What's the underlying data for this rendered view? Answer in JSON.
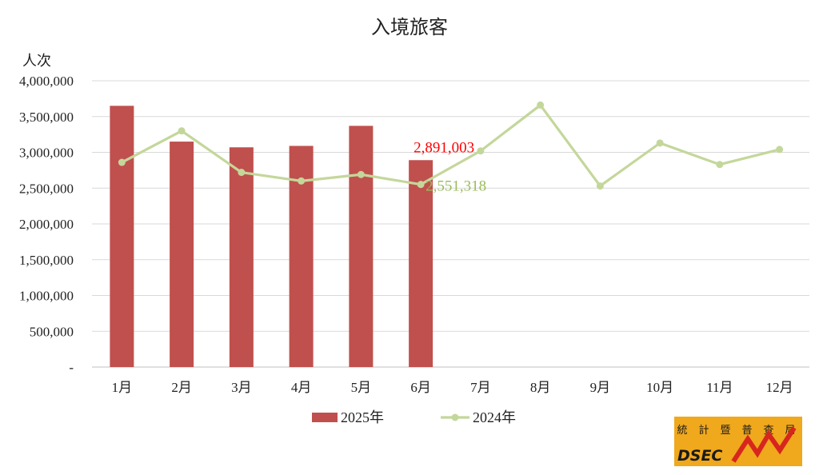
{
  "chart_data": {
    "type": "bar+line",
    "title": "入境旅客",
    "ylabel": "人次",
    "xlabel": "",
    "ylim": [
      0,
      4000000
    ],
    "yticks": [
      0,
      500000,
      1000000,
      1500000,
      2000000,
      2500000,
      3000000,
      3500000,
      4000000
    ],
    "ytick_labels": [
      "-",
      "500,000",
      "1,000,000",
      "1,500,000",
      "2,000,000",
      "2,500,000",
      "3,000,000",
      "3,500,000",
      "4,000,000"
    ],
    "categories": [
      "1月",
      "2月",
      "3月",
      "4月",
      "5月",
      "6月",
      "7月",
      "8月",
      "9月",
      "10月",
      "11月",
      "12月"
    ],
    "series": [
      {
        "name": "2025年",
        "kind": "bar",
        "color": "#C0504D",
        "values": [
          3650000,
          3150000,
          3070000,
          3090000,
          3370000,
          2891003,
          null,
          null,
          null,
          null,
          null,
          null
        ],
        "data_labels": [
          null,
          null,
          null,
          null,
          null,
          "2,891,003"
        ],
        "label_color": "#FF0000"
      },
      {
        "name": "2024年",
        "kind": "line",
        "color": "#C4D79B",
        "values": [
          2860000,
          3300000,
          2720000,
          2600000,
          2690000,
          2551318,
          3020000,
          3660000,
          2530000,
          3130000,
          2830000,
          3040000
        ],
        "data_labels": [
          null,
          null,
          null,
          null,
          null,
          "2,551,318"
        ],
        "label_color": "#9BBB59"
      }
    ],
    "grid": true,
    "legend_position": "bottom"
  },
  "logo": {
    "chars": [
      "統",
      "計",
      "暨",
      "普",
      "查",
      "局"
    ],
    "text": "DSEC",
    "bg_color": "#F0A81C",
    "mark_color": "#D7261E"
  }
}
